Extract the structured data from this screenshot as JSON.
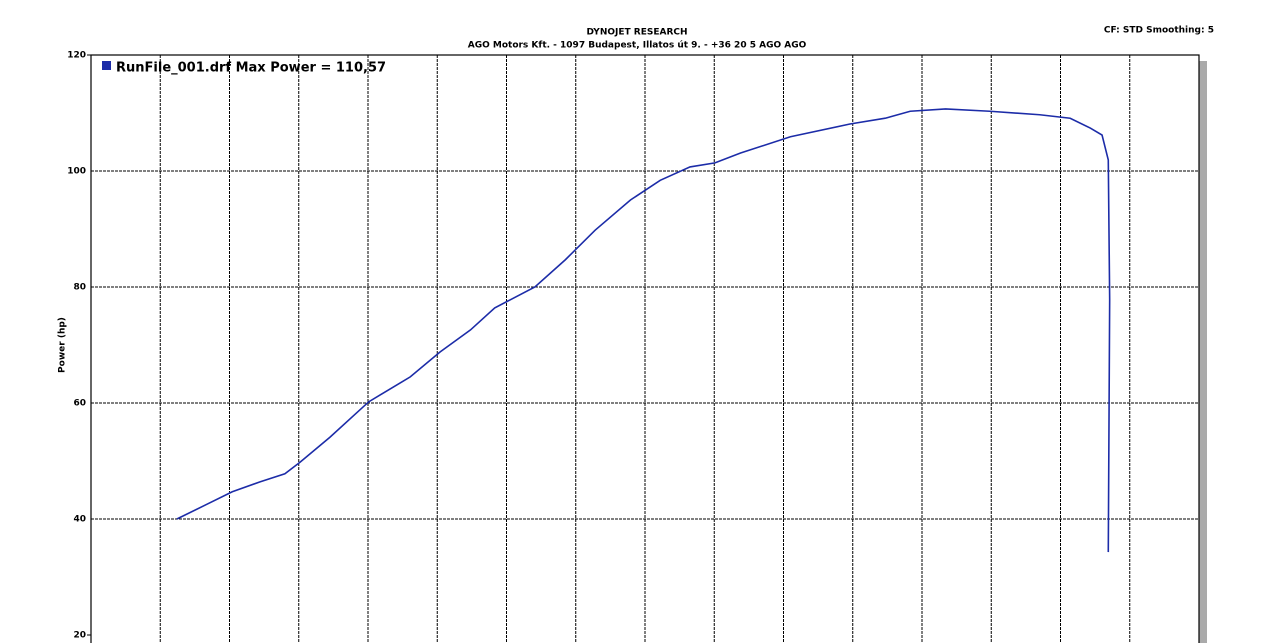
{
  "chart_data": {
    "type": "line",
    "title": "DYNOJET RESEARCH",
    "subtitle": "AGO Motors Kft. - 1097 Budapest, Illatos út 9. - +36 20 5 AGO AGO",
    "annotation": "CF: STD  Smoothing: 5",
    "y_label": "Power (hp)",
    "ylim": [
      20,
      120
    ],
    "yticks": [
      20,
      40,
      60,
      80,
      100,
      120
    ],
    "xlim": [
      0,
      16
    ],
    "grid": true,
    "legend": "top-left",
    "x": [
      1.24,
      1.65,
      2.04,
      2.44,
      2.8,
      3.02,
      3.45,
      4.01,
      4.61,
      5.04,
      5.48,
      5.83,
      6.41,
      6.85,
      7.28,
      7.79,
      8.22,
      8.65,
      9.01,
      9.38,
      10.1,
      10.96,
      11.47,
      11.83,
      12.34,
      12.98,
      13.7,
      14.14,
      14.43,
      14.6,
      14.69,
      14.71,
      14.69
    ],
    "series": [
      {
        "name": "RunFile_001.drf Max Power = 110,57",
        "color": "#1c2ca8",
        "values": [
          40.0,
          42.4,
          44.7,
          46.4,
          47.8,
          49.8,
          54.1,
          60.2,
          64.5,
          68.8,
          72.6,
          76.4,
          80.0,
          84.7,
          89.8,
          95.0,
          98.4,
          100.7,
          101.4,
          103.1,
          105.9,
          108.1,
          109.1,
          110.3,
          110.7,
          110.3,
          109.7,
          109.1,
          107.4,
          106.2,
          101.9,
          77.8,
          34.3
        ]
      }
    ]
  }
}
